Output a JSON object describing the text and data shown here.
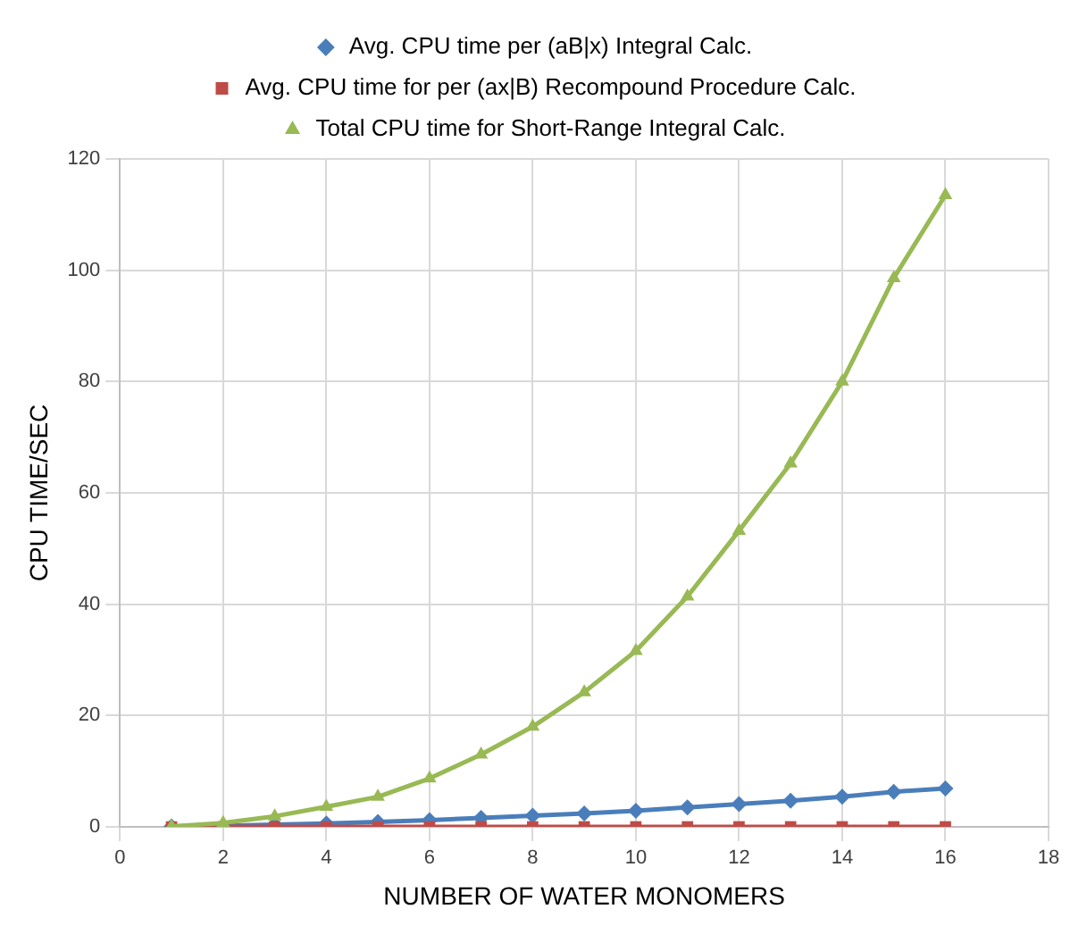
{
  "chart_data": {
    "type": "line",
    "xlabel": "NUMBER OF WATER MONOMERS",
    "ylabel": "CPU TIME/SEC",
    "x": [
      1,
      2,
      3,
      4,
      5,
      6,
      7,
      8,
      9,
      10,
      11,
      12,
      13,
      14,
      15,
      16
    ],
    "series": [
      {
        "name": "Avg. CPU time per (aB|x) Integral Calc.",
        "color": "#4a7ebb",
        "marker": "diamond",
        "values": [
          0.1,
          0.2,
          0.4,
          0.6,
          0.9,
          1.2,
          1.6,
          2.0,
          2.4,
          2.9,
          3.5,
          4.1,
          4.7,
          5.4,
          6.3,
          6.9
        ]
      },
      {
        "name": "Avg. CPU time for per (ax|B) Recompound Procedure Calc.",
        "color": "#be4b48",
        "marker": "square",
        "values": [
          0,
          0,
          0,
          0,
          0,
          0,
          0,
          0,
          0,
          0,
          0,
          0,
          0,
          0,
          0,
          0
        ]
      },
      {
        "name": "Total CPU time for Short-Range Integral Calc.",
        "color": "#98b954",
        "marker": "triangle",
        "values": [
          0.1,
          0.7,
          1.9,
          3.6,
          5.4,
          8.7,
          13,
          18,
          24.2,
          31.6,
          41.4,
          53.2,
          65.3,
          80,
          98.6,
          113.5
        ]
      }
    ],
    "xlim": [
      0,
      18
    ],
    "xticks": [
      0,
      2,
      4,
      6,
      8,
      10,
      12,
      14,
      16,
      18
    ],
    "ylim": [
      0,
      120
    ],
    "yticks": [
      0,
      20,
      40,
      60,
      80,
      100,
      120
    ],
    "grid": true,
    "legend": "top",
    "line_style": "solid"
  }
}
